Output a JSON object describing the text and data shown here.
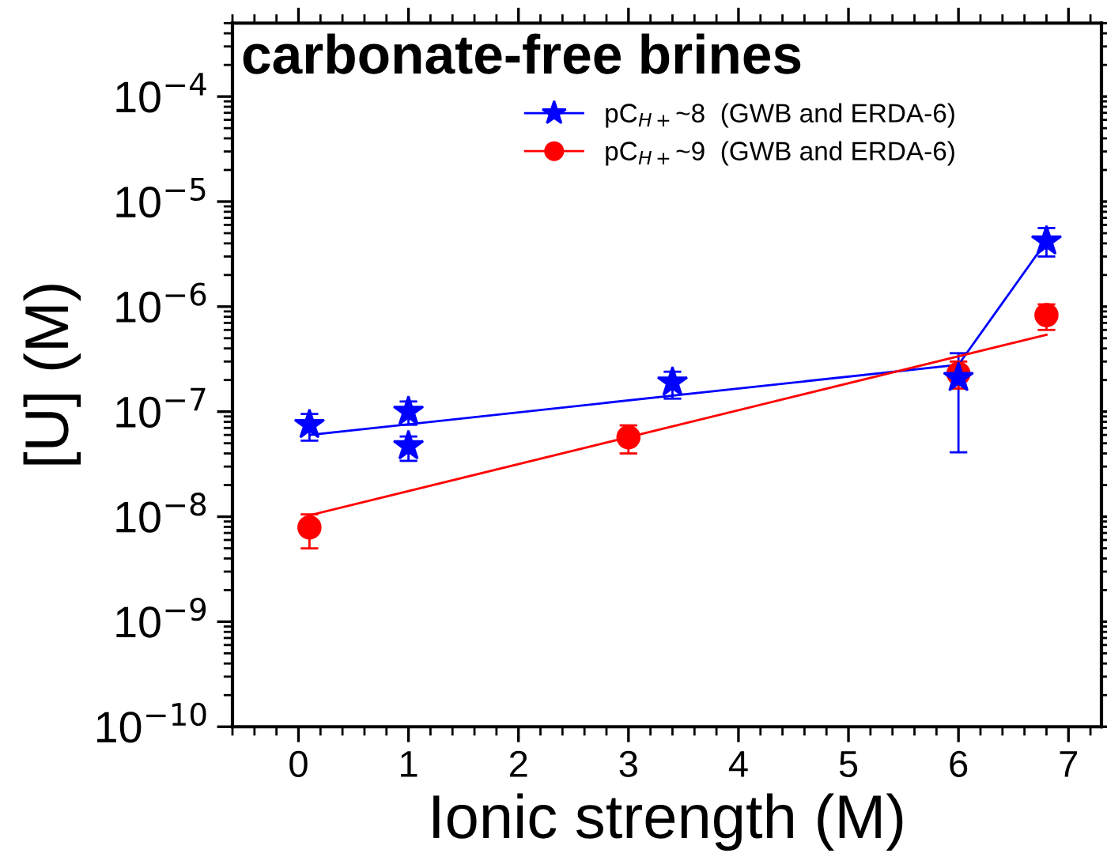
{
  "chart_data": {
    "type": "scatter",
    "title": "carbonate-free brines",
    "xlabel": "Ionic strength (M)",
    "ylabel": "[U] (M)",
    "series": [
      {
        "name": "pC$_{H+}$~8  (GWB and ERDA-6)",
        "color": "#0000ff",
        "marker": "star",
        "x": [
          0.1,
          1,
          1,
          3.4,
          6,
          6.8
        ],
        "values": [
          7.5e-08,
          1e-07,
          4.7e-08,
          1.9e-07,
          2.1e-07,
          4.2e-06
        ],
        "errors": [
          [
            5.3e-08,
            9.5e-08
          ],
          [
            7.5e-08,
            1.25e-07
          ],
          [
            3.4e-08,
            5.8e-08
          ],
          [
            1.33e-07,
            2.4e-07
          ],
          [
            4.1e-08,
            3.6e-07
          ],
          [
            3e-06,
            5.6e-06
          ]
        ]
      },
      {
        "name": "pC$_{H+}$~9  (GWB and ERDA-6)",
        "color": "#ff0000",
        "marker": "circle",
        "x": [
          0.1,
          3,
          6,
          6.8
        ],
        "values": [
          7.9e-09,
          5.7e-08,
          2.3e-07,
          8.3e-07
        ],
        "errors": [
          [
            5e-09,
            1.05e-08
          ],
          [
            4e-08,
            7.4e-08
          ],
          [
            1.66e-07,
            3e-07
          ],
          [
            6e-07,
            1.05e-06
          ]
        ]
      },
      {
        "type": "line",
        "color": "#0000ff",
        "x": [
          0.1,
          6,
          6.8
        ],
        "values": [
          6e-08,
          2.8e-07,
          4.2e-06
        ]
      },
      {
        "type": "line",
        "color": "#ff0000",
        "x": [
          0.1,
          6.8
        ],
        "values": [
          1.03e-08,
          5.4e-07
        ]
      }
    ],
    "log": "y",
    "xlim": [
      -0.6,
      7.3
    ],
    "xticks": [
      0,
      1,
      2,
      3,
      4,
      5,
      6,
      7
    ],
    "ylim": [
      1e-10,
      0.0005
    ],
    "yticks": [
      {
        "value": 1e-10,
        "label": "10$^{−10}$"
      },
      {
        "value": 1e-09,
        "label": "10$^{−9}$"
      },
      {
        "value": 1e-08,
        "label": "10$^{−8}$"
      },
      {
        "value": 1e-07,
        "label": "10$^{−7}$"
      },
      {
        "value": 1e-06,
        "label": "10$^{−6}$"
      },
      {
        "value": 1e-05,
        "label": "10$^{−5}$"
      },
      {
        "value": 0.0001,
        "label": "10$^{−4}$"
      }
    ],
    "grid": false,
    "legend": "top right"
  }
}
